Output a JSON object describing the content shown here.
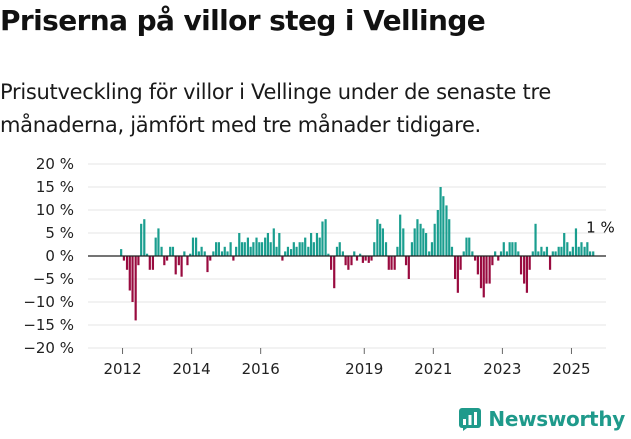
{
  "header": {
    "title": "Priserna på villor steg i Vellinge",
    "subtitle": "Prisutveckling för villor i Vellinge under de senaste tre månaderna, jämfört med tre månader tidigare."
  },
  "brand": {
    "name": "Newsworthy"
  },
  "colors": {
    "positive": "#1a9e8f",
    "negative": "#990b3f",
    "grid": "#e4e4e4",
    "zero": "#222222",
    "brand": "#1f9a8b"
  },
  "chart_data": {
    "type": "bar",
    "y_ticks": [
      "20 %",
      "15 %",
      "10 %",
      "5 %",
      "0 %",
      "−5 %",
      "−10 %",
      "−15 %",
      "−20 %"
    ],
    "ylim": [
      -20,
      20
    ],
    "x_ticks": [
      "2012",
      "2014",
      "2016",
      "2019",
      "2021",
      "2023",
      "2025"
    ],
    "x_tick_positions": [
      2012.0,
      2014.0,
      2016.0,
      2019.0,
      2021.0,
      2023.0,
      2025.0
    ],
    "x_range": [
      2011.0,
      2026.0
    ],
    "annotation": {
      "text": "1 %",
      "x": 2025.6,
      "y": 1
    },
    "series": [
      {
        "x": 2011.96,
        "v": 1.5
      },
      {
        "x": 2012.04,
        "v": -1
      },
      {
        "x": 2012.13,
        "v": -3
      },
      {
        "x": 2012.21,
        "v": -7.5
      },
      {
        "x": 2012.29,
        "v": -10
      },
      {
        "x": 2012.38,
        "v": -14
      },
      {
        "x": 2012.46,
        "v": -2
      },
      {
        "x": 2012.54,
        "v": 7
      },
      {
        "x": 2012.63,
        "v": 8
      },
      {
        "x": 2012.71,
        "v": 0.5
      },
      {
        "x": 2012.79,
        "v": -3
      },
      {
        "x": 2012.88,
        "v": -3
      },
      {
        "x": 2012.96,
        "v": 4
      },
      {
        "x": 2013.04,
        "v": 6
      },
      {
        "x": 2013.13,
        "v": 2
      },
      {
        "x": 2013.21,
        "v": -2
      },
      {
        "x": 2013.29,
        "v": -1
      },
      {
        "x": 2013.38,
        "v": 2
      },
      {
        "x": 2013.46,
        "v": 2
      },
      {
        "x": 2013.54,
        "v": -4
      },
      {
        "x": 2013.63,
        "v": -2
      },
      {
        "x": 2013.71,
        "v": -4.5
      },
      {
        "x": 2013.79,
        "v": 1
      },
      {
        "x": 2013.88,
        "v": -2
      },
      {
        "x": 2013.96,
        "v": 0.5
      },
      {
        "x": 2014.04,
        "v": 4
      },
      {
        "x": 2014.13,
        "v": 4
      },
      {
        "x": 2014.21,
        "v": 1
      },
      {
        "x": 2014.29,
        "v": 2
      },
      {
        "x": 2014.38,
        "v": 1
      },
      {
        "x": 2014.46,
        "v": -3.5
      },
      {
        "x": 2014.54,
        "v": -1
      },
      {
        "x": 2014.63,
        "v": 1
      },
      {
        "x": 2014.71,
        "v": 3
      },
      {
        "x": 2014.79,
        "v": 3
      },
      {
        "x": 2014.88,
        "v": 1
      },
      {
        "x": 2014.96,
        "v": 2
      },
      {
        "x": 2015.04,
        "v": 1
      },
      {
        "x": 2015.13,
        "v": 3
      },
      {
        "x": 2015.21,
        "v": -1
      },
      {
        "x": 2015.29,
        "v": 2
      },
      {
        "x": 2015.38,
        "v": 5
      },
      {
        "x": 2015.46,
        "v": 3
      },
      {
        "x": 2015.54,
        "v": 3
      },
      {
        "x": 2015.63,
        "v": 4
      },
      {
        "x": 2015.71,
        "v": 2
      },
      {
        "x": 2015.79,
        "v": 3
      },
      {
        "x": 2015.88,
        "v": 4
      },
      {
        "x": 2015.96,
        "v": 3
      },
      {
        "x": 2016.04,
        "v": 3
      },
      {
        "x": 2016.13,
        "v": 4
      },
      {
        "x": 2016.21,
        "v": 5
      },
      {
        "x": 2016.29,
        "v": 3
      },
      {
        "x": 2016.38,
        "v": 6
      },
      {
        "x": 2016.46,
        "v": 2
      },
      {
        "x": 2016.54,
        "v": 5
      },
      {
        "x": 2016.63,
        "v": -1
      },
      {
        "x": 2016.71,
        "v": 1
      },
      {
        "x": 2016.79,
        "v": 2
      },
      {
        "x": 2016.88,
        "v": 1.5
      },
      {
        "x": 2016.96,
        "v": 3
      },
      {
        "x": 2017.04,
        "v": 2
      },
      {
        "x": 2017.13,
        "v": 3
      },
      {
        "x": 2017.21,
        "v": 3
      },
      {
        "x": 2017.29,
        "v": 4
      },
      {
        "x": 2017.38,
        "v": 2
      },
      {
        "x": 2017.46,
        "v": 5
      },
      {
        "x": 2017.54,
        "v": 3
      },
      {
        "x": 2017.63,
        "v": 5
      },
      {
        "x": 2017.71,
        "v": 4
      },
      {
        "x": 2017.79,
        "v": 7.5
      },
      {
        "x": 2017.88,
        "v": 8
      },
      {
        "x": 2017.96,
        "v": 0.5
      },
      {
        "x": 2018.04,
        "v": -3
      },
      {
        "x": 2018.13,
        "v": -7
      },
      {
        "x": 2018.21,
        "v": 2
      },
      {
        "x": 2018.29,
        "v": 3
      },
      {
        "x": 2018.38,
        "v": 1
      },
      {
        "x": 2018.46,
        "v": -2
      },
      {
        "x": 2018.54,
        "v": -3
      },
      {
        "x": 2018.63,
        "v": -2
      },
      {
        "x": 2018.71,
        "v": 1
      },
      {
        "x": 2018.79,
        "v": -1
      },
      {
        "x": 2018.88,
        "v": 0.5
      },
      {
        "x": 2018.96,
        "v": -1.5
      },
      {
        "x": 2019.04,
        "v": -1
      },
      {
        "x": 2019.13,
        "v": -1.5
      },
      {
        "x": 2019.21,
        "v": -1
      },
      {
        "x": 2019.29,
        "v": 3
      },
      {
        "x": 2019.38,
        "v": 8
      },
      {
        "x": 2019.46,
        "v": 7
      },
      {
        "x": 2019.54,
        "v": 6
      },
      {
        "x": 2019.63,
        "v": 3
      },
      {
        "x": 2019.71,
        "v": -3
      },
      {
        "x": 2019.79,
        "v": -3
      },
      {
        "x": 2019.88,
        "v": -3
      },
      {
        "x": 2019.96,
        "v": 2
      },
      {
        "x": 2020.04,
        "v": 9
      },
      {
        "x": 2020.13,
        "v": 6
      },
      {
        "x": 2020.21,
        "v": -2
      },
      {
        "x": 2020.29,
        "v": -5
      },
      {
        "x": 2020.38,
        "v": 3
      },
      {
        "x": 2020.46,
        "v": 6
      },
      {
        "x": 2020.54,
        "v": 8
      },
      {
        "x": 2020.63,
        "v": 7
      },
      {
        "x": 2020.71,
        "v": 6
      },
      {
        "x": 2020.79,
        "v": 5
      },
      {
        "x": 2020.88,
        "v": 1
      },
      {
        "x": 2020.96,
        "v": 3
      },
      {
        "x": 2021.04,
        "v": 7
      },
      {
        "x": 2021.13,
        "v": 10
      },
      {
        "x": 2021.21,
        "v": 15
      },
      {
        "x": 2021.29,
        "v": 13
      },
      {
        "x": 2021.38,
        "v": 11
      },
      {
        "x": 2021.46,
        "v": 8
      },
      {
        "x": 2021.54,
        "v": 2
      },
      {
        "x": 2021.63,
        "v": -5
      },
      {
        "x": 2021.71,
        "v": -8
      },
      {
        "x": 2021.79,
        "v": -3
      },
      {
        "x": 2021.88,
        "v": 1
      },
      {
        "x": 2021.96,
        "v": 4
      },
      {
        "x": 2022.04,
        "v": 4
      },
      {
        "x": 2022.13,
        "v": 1
      },
      {
        "x": 2022.21,
        "v": -1
      },
      {
        "x": 2022.29,
        "v": -4
      },
      {
        "x": 2022.38,
        "v": -7
      },
      {
        "x": 2022.46,
        "v": -9
      },
      {
        "x": 2022.54,
        "v": -6
      },
      {
        "x": 2022.63,
        "v": -6
      },
      {
        "x": 2022.71,
        "v": -2
      },
      {
        "x": 2022.79,
        "v": 1
      },
      {
        "x": 2022.88,
        "v": -1
      },
      {
        "x": 2022.96,
        "v": 1
      },
      {
        "x": 2023.04,
        "v": 3
      },
      {
        "x": 2023.13,
        "v": 1
      },
      {
        "x": 2023.21,
        "v": 3
      },
      {
        "x": 2023.29,
        "v": 3
      },
      {
        "x": 2023.38,
        "v": 3
      },
      {
        "x": 2023.46,
        "v": 1
      },
      {
        "x": 2023.54,
        "v": -4
      },
      {
        "x": 2023.63,
        "v": -6
      },
      {
        "x": 2023.71,
        "v": -8
      },
      {
        "x": 2023.79,
        "v": -3
      },
      {
        "x": 2023.88,
        "v": 1
      },
      {
        "x": 2023.96,
        "v": 7
      },
      {
        "x": 2024.04,
        "v": 1
      },
      {
        "x": 2024.13,
        "v": 2
      },
      {
        "x": 2024.21,
        "v": 1
      },
      {
        "x": 2024.29,
        "v": 2
      },
      {
        "x": 2024.38,
        "v": -3
      },
      {
        "x": 2024.46,
        "v": 1
      },
      {
        "x": 2024.54,
        "v": 1
      },
      {
        "x": 2024.63,
        "v": 2
      },
      {
        "x": 2024.71,
        "v": 2
      },
      {
        "x": 2024.79,
        "v": 5
      },
      {
        "x": 2024.88,
        "v": 3
      },
      {
        "x": 2024.96,
        "v": 1
      },
      {
        "x": 2025.04,
        "v": 2
      },
      {
        "x": 2025.13,
        "v": 6
      },
      {
        "x": 2025.21,
        "v": 2
      },
      {
        "x": 2025.29,
        "v": 3
      },
      {
        "x": 2025.38,
        "v": 2
      },
      {
        "x": 2025.46,
        "v": 3
      },
      {
        "x": 2025.54,
        "v": 1
      },
      {
        "x": 2025.63,
        "v": 1
      }
    ]
  }
}
